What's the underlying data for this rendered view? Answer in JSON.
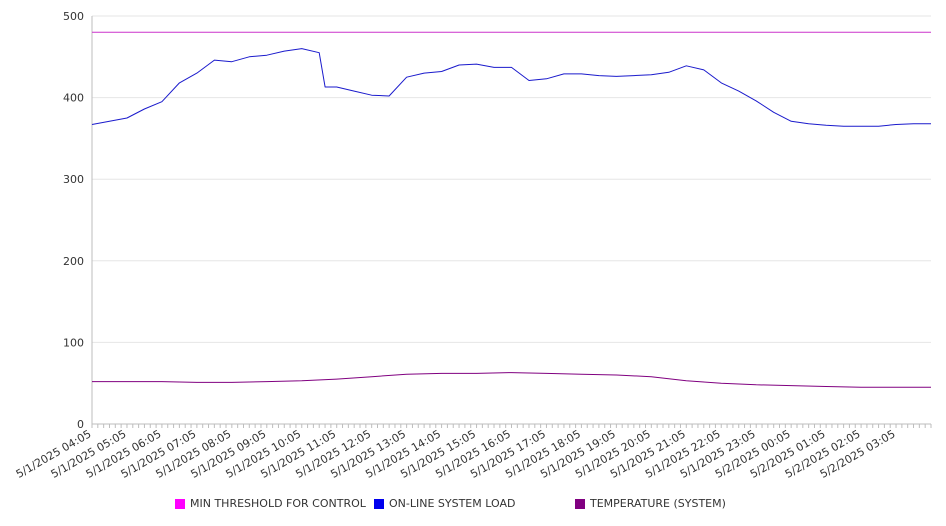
{
  "chart_data": {
    "type": "line",
    "title": "",
    "xlabel": "",
    "ylabel": "",
    "ylim": [
      0,
      500
    ],
    "yticks": [
      "0",
      "100",
      "200",
      "300",
      "400",
      "500"
    ],
    "grid": true,
    "legend_position": "bottom",
    "x_tick_labels": [
      "5/1/2025 04:05",
      "5/1/2025 05:05",
      "5/1/2025 06:05",
      "5/1/2025 07:05",
      "5/1/2025 08:05",
      "5/1/2025 09:05",
      "5/1/2025 10:05",
      "5/1/2025 11:05",
      "5/1/2025 12:05",
      "5/1/2025 13:05",
      "5/1/2025 14:05",
      "5/1/2025 15:05",
      "5/1/2025 16:05",
      "5/1/2025 17:05",
      "5/1/2025 18:05",
      "5/1/2025 19:05",
      "5/1/2025 20:05",
      "5/1/2025 21:05",
      "5/1/2025 22:05",
      "5/1/2025 23:05",
      "5/2/2025 00:05",
      "5/2/2025 01:05",
      "5/2/2025 02:05",
      "5/2/2025 03:05"
    ],
    "x_range": [
      "5/1/2025 04:05",
      "5/2/2025 04:05"
    ],
    "series": [
      {
        "name": "MIN THRESHOLD FOR CONTROL",
        "color": "#cc33cc",
        "legend_color": "#ff00ff",
        "points": [
          [
            "5/1/2025 04:05",
            480
          ],
          [
            "5/2/2025 04:05",
            480
          ]
        ]
      },
      {
        "name": "ON-LINE SYSTEM LOAD",
        "color": "#1a1acc",
        "legend_color": "#0000ee",
        "points": [
          [
            "5/1/2025 04:05",
            367
          ],
          [
            "5/1/2025 04:35",
            371
          ],
          [
            "5/1/2025 05:05",
            375
          ],
          [
            "5/1/2025 05:35",
            386
          ],
          [
            "5/1/2025 06:05",
            395
          ],
          [
            "5/1/2025 06:35",
            418
          ],
          [
            "5/1/2025 07:05",
            430
          ],
          [
            "5/1/2025 07:35",
            446
          ],
          [
            "5/1/2025 08:05",
            444
          ],
          [
            "5/1/2025 08:35",
            450
          ],
          [
            "5/1/2025 09:05",
            452
          ],
          [
            "5/1/2025 09:35",
            457
          ],
          [
            "5/1/2025 10:05",
            460
          ],
          [
            "5/1/2025 10:35",
            455
          ],
          [
            "5/1/2025 10:45",
            413
          ],
          [
            "5/1/2025 11:05",
            413
          ],
          [
            "5/1/2025 11:35",
            408
          ],
          [
            "5/1/2025 12:05",
            403
          ],
          [
            "5/1/2025 12:35",
            402
          ],
          [
            "5/1/2025 13:05",
            425
          ],
          [
            "5/1/2025 13:35",
            430
          ],
          [
            "5/1/2025 14:05",
            432
          ],
          [
            "5/1/2025 14:35",
            440
          ],
          [
            "5/1/2025 15:05",
            441
          ],
          [
            "5/1/2025 15:35",
            437
          ],
          [
            "5/1/2025 16:05",
            437
          ],
          [
            "5/1/2025 16:35",
            421
          ],
          [
            "5/1/2025 17:05",
            423
          ],
          [
            "5/1/2025 17:35",
            429
          ],
          [
            "5/1/2025 18:05",
            429
          ],
          [
            "5/1/2025 18:35",
            427
          ],
          [
            "5/1/2025 19:05",
            426
          ],
          [
            "5/1/2025 19:35",
            427
          ],
          [
            "5/1/2025 20:05",
            428
          ],
          [
            "5/1/2025 20:35",
            431
          ],
          [
            "5/1/2025 21:05",
            439
          ],
          [
            "5/1/2025 21:35",
            434
          ],
          [
            "5/1/2025 22:05",
            418
          ],
          [
            "5/1/2025 22:35",
            408
          ],
          [
            "5/1/2025 23:05",
            396
          ],
          [
            "5/1/2025 23:35",
            382
          ],
          [
            "5/2/2025 00:05",
            371
          ],
          [
            "5/2/2025 00:35",
            368
          ],
          [
            "5/2/2025 01:05",
            366
          ],
          [
            "5/2/2025 01:35",
            365
          ],
          [
            "5/2/2025 02:05",
            365
          ],
          [
            "5/2/2025 02:35",
            365
          ],
          [
            "5/2/2025 03:05",
            367
          ],
          [
            "5/2/2025 03:35",
            368
          ],
          [
            "5/2/2025 04:05",
            368
          ]
        ]
      },
      {
        "name": "TEMPERATURE (SYSTEM)",
        "color": "#800080",
        "legend_color": "#800080",
        "points": [
          [
            "5/1/2025 04:05",
            52
          ],
          [
            "5/1/2025 06:05",
            52
          ],
          [
            "5/1/2025 07:05",
            51
          ],
          [
            "5/1/2025 08:05",
            51
          ],
          [
            "5/1/2025 09:05",
            52
          ],
          [
            "5/1/2025 10:05",
            53
          ],
          [
            "5/1/2025 11:05",
            55
          ],
          [
            "5/1/2025 12:05",
            58
          ],
          [
            "5/1/2025 13:05",
            61
          ],
          [
            "5/1/2025 14:05",
            62
          ],
          [
            "5/1/2025 15:05",
            62
          ],
          [
            "5/1/2025 16:05",
            63
          ],
          [
            "5/1/2025 17:05",
            62
          ],
          [
            "5/1/2025 18:05",
            61
          ],
          [
            "5/1/2025 19:05",
            60
          ],
          [
            "5/1/2025 20:05",
            58
          ],
          [
            "5/1/2025 21:05",
            53
          ],
          [
            "5/1/2025 22:05",
            50
          ],
          [
            "5/1/2025 23:05",
            48
          ],
          [
            "5/2/2025 00:05",
            47
          ],
          [
            "5/2/2025 01:05",
            46
          ],
          [
            "5/2/2025 02:05",
            45
          ],
          [
            "5/2/2025 03:05",
            45
          ],
          [
            "5/2/2025 04:05",
            45
          ]
        ]
      }
    ]
  }
}
